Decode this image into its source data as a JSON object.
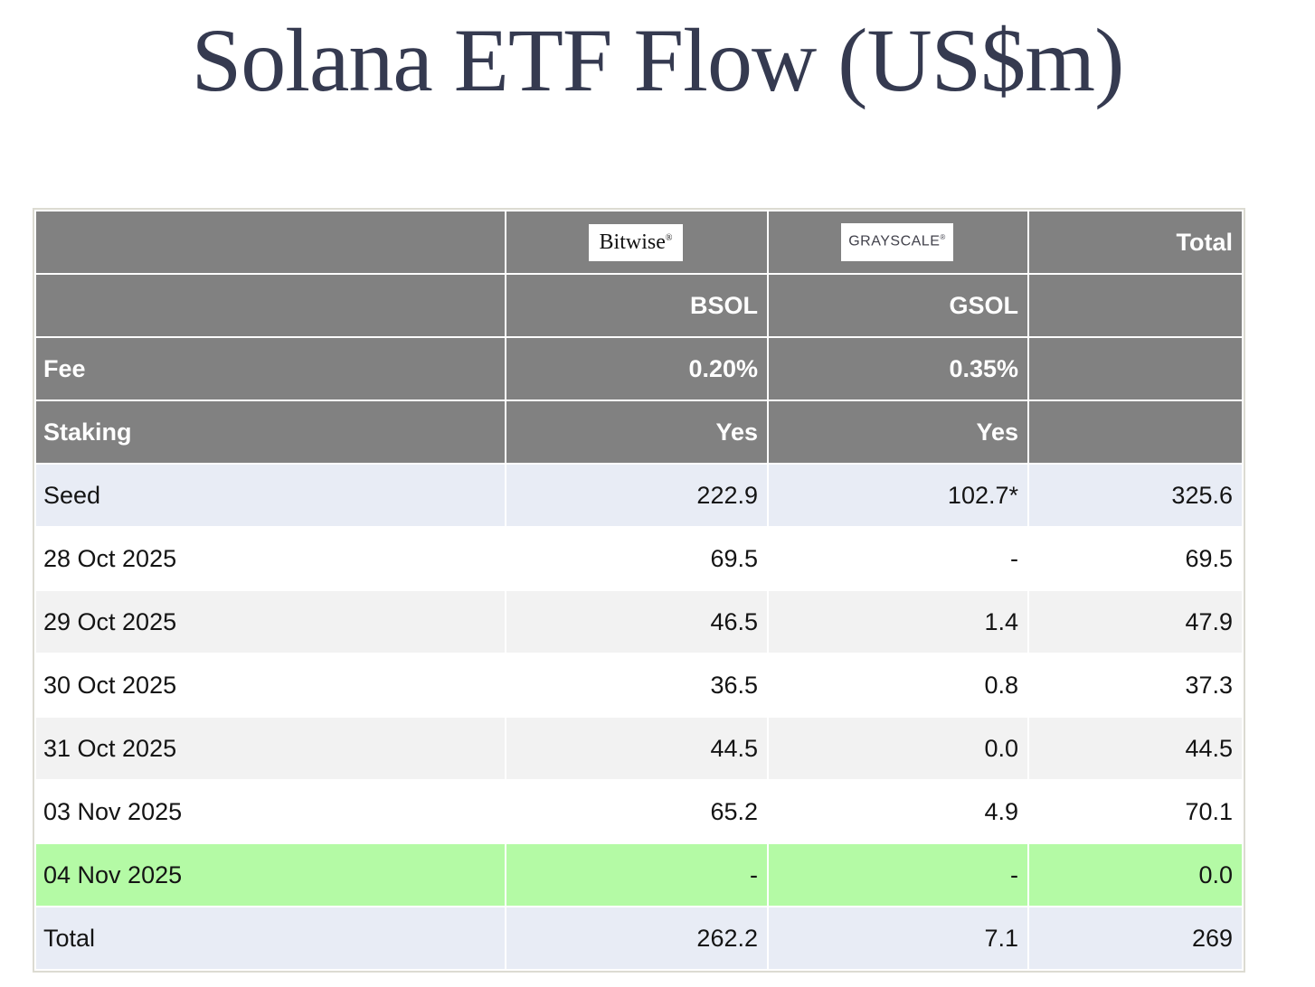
{
  "chart_data": {
    "type": "table",
    "title": "Solana ETF Flow (US$m)",
    "providers": [
      {
        "name": "Bitwise",
        "mark": "®",
        "ticker": "BSOL",
        "fee": "0.20%",
        "staking": "Yes"
      },
      {
        "name": "GRAYSCALE",
        "mark": "®",
        "ticker": "GSOL",
        "fee": "0.35%",
        "staking": "Yes"
      }
    ],
    "labels": {
      "total_column": "Total",
      "fee_row": "Fee",
      "staking_row": "Staking"
    },
    "rows": [
      {
        "label": "Seed",
        "bsol": "222.9",
        "gsol": "102.7*",
        "total": "325.6",
        "highlight": "blue"
      },
      {
        "label": "28 Oct 2025",
        "bsol": "69.5",
        "gsol": "-",
        "total": "69.5",
        "highlight": "white"
      },
      {
        "label": "29 Oct 2025",
        "bsol": "46.5",
        "gsol": "1.4",
        "total": "47.9",
        "highlight": "gray"
      },
      {
        "label": "30 Oct 2025",
        "bsol": "36.5",
        "gsol": "0.8",
        "total": "37.3",
        "highlight": "white"
      },
      {
        "label": "31 Oct 2025",
        "bsol": "44.5",
        "gsol": "0.0",
        "total": "44.5",
        "highlight": "gray"
      },
      {
        "label": "03 Nov 2025",
        "bsol": "65.2",
        "gsol": "4.9",
        "total": "70.1",
        "highlight": "white"
      },
      {
        "label": "04 Nov 2025",
        "bsol": "-",
        "gsol": "-",
        "total": "0.0",
        "highlight": "green"
      },
      {
        "label": "Total",
        "bsol": "262.2",
        "gsol": "7.1",
        "total": "269",
        "highlight": "blue"
      }
    ],
    "colors": {
      "header_bg": "#818181",
      "header_text": "#ffffff",
      "row_blue": "#e8ecf5",
      "row_gray": "#f2f2f2",
      "row_green": "#b4faa5",
      "title_text": "#353a50",
      "cell_border": "#ffffff",
      "outer_border": "#dcdbd2"
    }
  }
}
